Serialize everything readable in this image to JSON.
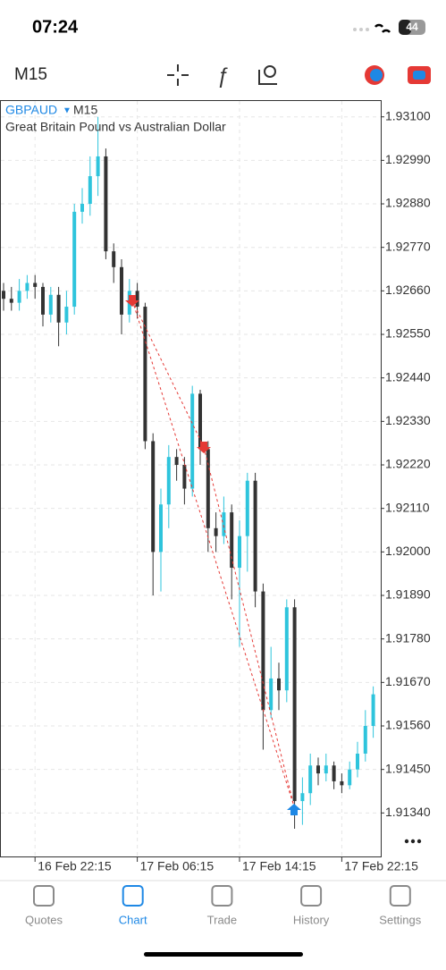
{
  "status_bar": {
    "time": "07:24",
    "battery": "44"
  },
  "toolbar": {
    "timeframe": "M15"
  },
  "chart_data": {
    "type": "candlestick",
    "symbol": "GBPAUD",
    "timeframe": "M15",
    "description": "Great Britain Pound vs Australian Dollar",
    "categories": [
      null,
      null,
      null,
      null,
      "16 Feb 22:15",
      null,
      null,
      null,
      null,
      null,
      null,
      null,
      null,
      null,
      null,
      null,
      null,
      "17 Feb 06:15",
      null,
      null,
      null,
      null,
      null,
      null,
      null,
      null,
      null,
      null,
      null,
      null,
      "17 Feb 14:15",
      null,
      null,
      null,
      null,
      null,
      null,
      null,
      null,
      null,
      null,
      null,
      null,
      "17 Feb 22:15",
      null,
      null,
      null,
      null
    ],
    "open": [
      1.9266,
      1.9264,
      1.9263,
      1.9266,
      1.9268,
      1.9267,
      1.926,
      1.9265,
      1.9258,
      1.9262,
      1.9286,
      1.9288,
      1.9295,
      1.93,
      1.9276,
      1.9272,
      1.926,
      1.9266,
      1.9262,
      1.9228,
      1.92,
      1.9212,
      1.9224,
      1.9222,
      1.9216,
      1.924,
      1.9226,
      1.9206,
      1.9204,
      1.921,
      1.9196,
      1.9204,
      1.9218,
      1.919,
      1.916,
      1.9168,
      1.9165,
      1.9186,
      1.9137,
      1.9139,
      1.9146,
      1.9144,
      1.9146,
      1.9142,
      1.9141,
      1.9145,
      1.9149,
      1.9156
    ],
    "high": [
      1.9268,
      1.9267,
      1.9269,
      1.927,
      1.927,
      1.9268,
      1.9267,
      1.9267,
      1.9266,
      1.9288,
      1.9292,
      1.93,
      1.931,
      1.9302,
      1.9278,
      1.9274,
      1.9269,
      1.9268,
      1.9263,
      1.923,
      1.9216,
      1.9227,
      1.9226,
      1.9224,
      1.9242,
      1.9241,
      1.9228,
      1.921,
      1.9214,
      1.9212,
      1.9208,
      1.922,
      1.922,
      1.9192,
      1.9176,
      1.9172,
      1.9188,
      1.9188,
      1.9143,
      1.9149,
      1.9148,
      1.9149,
      1.9147,
      1.9144,
      1.9147,
      1.9152,
      1.916,
      1.9166
    ],
    "low": [
      1.9261,
      1.9261,
      1.9261,
      1.9264,
      1.9264,
      1.9257,
      1.9258,
      1.9252,
      1.9255,
      1.926,
      1.9283,
      1.9285,
      1.929,
      1.9274,
      1.9268,
      1.9255,
      1.9258,
      1.9259,
      1.9226,
      1.9189,
      1.919,
      1.9206,
      1.9218,
      1.9212,
      1.9214,
      1.9222,
      1.92,
      1.92,
      1.9202,
      1.9188,
      1.9176,
      1.9195,
      1.9186,
      1.915,
      1.9158,
      1.916,
      1.9162,
      1.913,
      1.9131,
      1.9136,
      1.9141,
      1.9142,
      1.914,
      1.9139,
      1.914,
      1.9143,
      1.9147,
      1.9153
    ],
    "close": [
      1.9264,
      1.9263,
      1.9266,
      1.9268,
      1.9267,
      1.926,
      1.9265,
      1.9258,
      1.9262,
      1.9286,
      1.9288,
      1.9295,
      1.93,
      1.9276,
      1.9272,
      1.926,
      1.9266,
      1.9262,
      1.9228,
      1.92,
      1.9212,
      1.9224,
      1.9222,
      1.9216,
      1.924,
      1.9226,
      1.9206,
      1.9204,
      1.921,
      1.9196,
      1.9204,
      1.9218,
      1.919,
      1.916,
      1.9168,
      1.9165,
      1.9186,
      1.9137,
      1.9139,
      1.9146,
      1.9144,
      1.9146,
      1.9142,
      1.9141,
      1.9145,
      1.9149,
      1.9156,
      1.9164
    ],
    "up_color": "#2ec4dc",
    "down_color": "#333333",
    "grid": true,
    "ylim": [
      1.9123,
      1.9314
    ],
    "yticks": [
      {
        "value": 1.931,
        "label": "1.93100"
      },
      {
        "value": 1.9299,
        "label": "1.92990"
      },
      {
        "value": 1.9288,
        "label": "1.92880"
      },
      {
        "value": 1.9277,
        "label": "1.92770"
      },
      {
        "value": 1.9266,
        "label": "1.92660"
      },
      {
        "value": 1.9255,
        "label": "1.92550"
      },
      {
        "value": 1.9244,
        "label": "1.92440"
      },
      {
        "value": 1.9233,
        "label": "1.92330"
      },
      {
        "value": 1.9222,
        "label": "1.92220"
      },
      {
        "value": 1.9211,
        "label": "1.92110"
      },
      {
        "value": 1.92,
        "label": "1.92000"
      },
      {
        "value": 1.9189,
        "label": "1.91890"
      },
      {
        "value": 1.9178,
        "label": "1.91780"
      },
      {
        "value": 1.9167,
        "label": "1.91670"
      },
      {
        "value": 1.9156,
        "label": "1.91560"
      },
      {
        "value": 1.9145,
        "label": "1.91450"
      },
      {
        "value": 1.9134,
        "label": "1.91340"
      }
    ]
  },
  "nav": {
    "tabs": [
      "Quotes",
      "Chart",
      "Trade",
      "History",
      "Settings"
    ],
    "active": 1
  }
}
